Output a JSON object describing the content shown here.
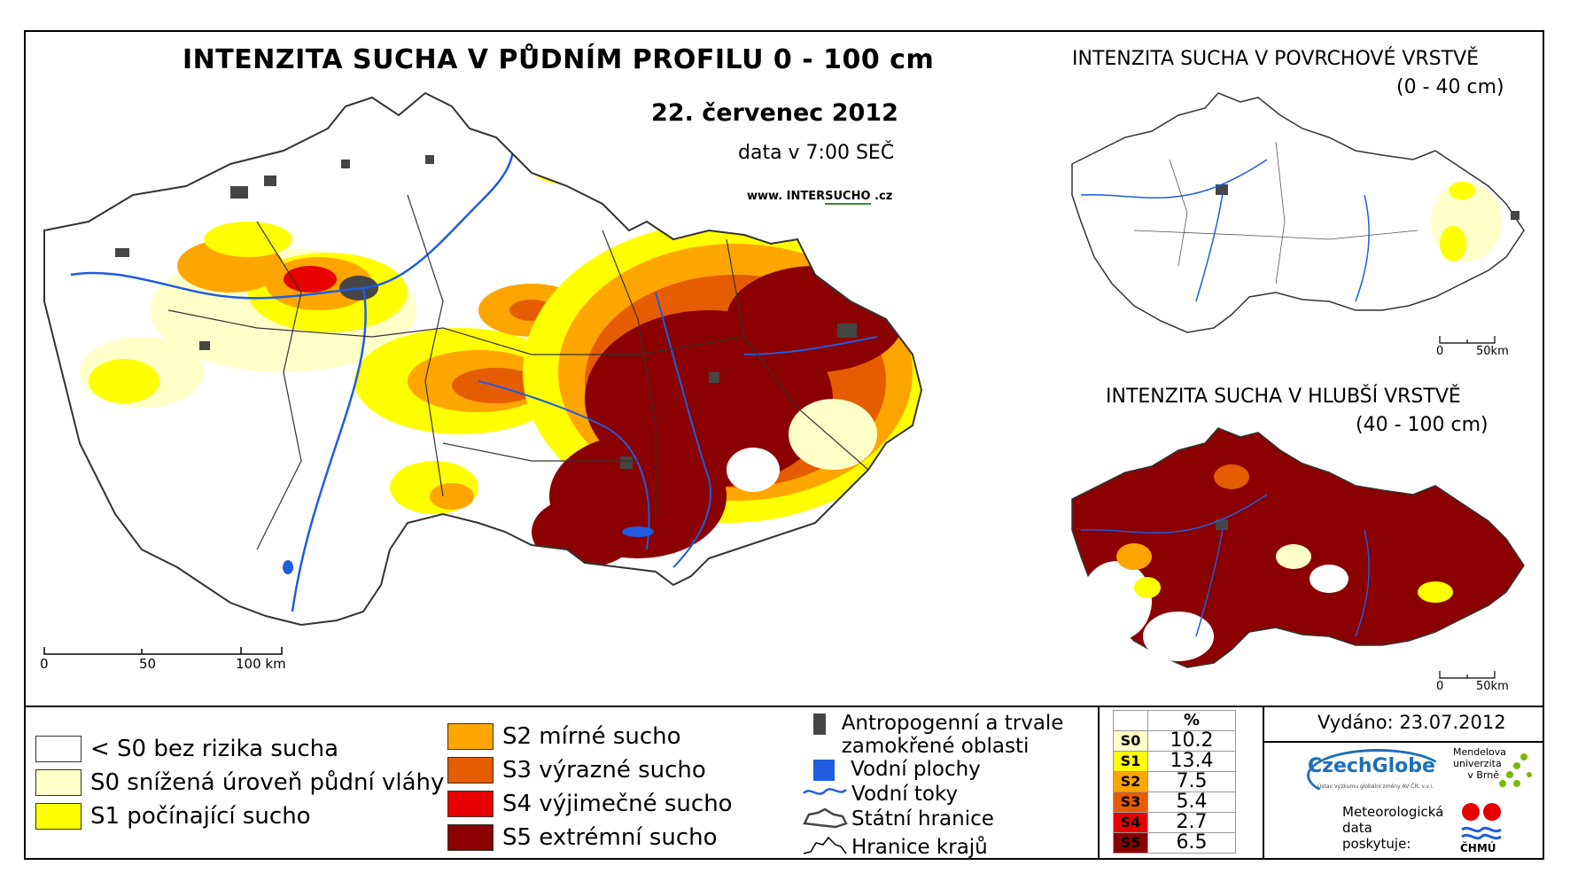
{
  "header": {
    "title": "INTENZITA SUCHA V PŮDNÍM PROFILU 0 - 100 cm",
    "date": "22. červenec 2012",
    "data_time": "data v 7:00 SEČ",
    "website_prefix": "www. INTER",
    "website_brand": "SUCHO",
    "website_suffix": " .cz"
  },
  "inset_top": {
    "title": "INTENZITA SUCHA V POVRCHOVÉ VRSTVĚ",
    "subtitle": "(0 - 40 cm)",
    "scale_0": "0",
    "scale_end": "50km"
  },
  "inset_bottom": {
    "title": "INTENZITA SUCHA V HLUBŠÍ VRSTVĚ",
    "subtitle": "(40 - 100 cm)",
    "scale_0": "0",
    "scale_end": "50km"
  },
  "main_scale": {
    "s0": "0",
    "s50": "50",
    "s100": "100 km"
  },
  "legend": {
    "items": [
      {
        "label": "< S0 bez rizika sucha",
        "color": "#ffffff"
      },
      {
        "label": "S0 snížená úroveň půdní vláhy",
        "color": "#ffffc8"
      },
      {
        "label": "S1 počínající sucho",
        "color": "#ffff00"
      },
      {
        "label": "S2 mírné sucho",
        "color": "#ffa500"
      },
      {
        "label": "S3 výrazné sucho",
        "color": "#e65c00"
      },
      {
        "label": "S4 výjimečné sucho",
        "color": "#e60000"
      },
      {
        "label": "S5 extrémní sucho",
        "color": "#8b0000"
      }
    ]
  },
  "symbols": {
    "anthropogenic": "Antropogenní a trvale zamokřené oblasti",
    "water_bodies": "Vodní plochy",
    "rivers": "Vodní toky",
    "state_border": "Státní hranice",
    "region_border": "Hranice krajů"
  },
  "stats": {
    "header": "%",
    "rows": [
      {
        "code": "S0",
        "value": "10.2",
        "color": "#ffffc8"
      },
      {
        "code": "S1",
        "value": "13.4",
        "color": "#ffff00"
      },
      {
        "code": "S2",
        "value": "7.5",
        "color": "#ffa500"
      },
      {
        "code": "S3",
        "value": "5.4",
        "color": "#e65c00"
      },
      {
        "code": "S4",
        "value": "2.7",
        "color": "#e60000"
      },
      {
        "code": "S5",
        "value": "6.5",
        "color": "#8b0000"
      }
    ]
  },
  "footer": {
    "issued": "Vydáno: 23.07.2012",
    "czechglobe": "CzechGlobe",
    "czechglobe_sub": "Ústav výzkumu globální změny AV ČR, v.v.i.",
    "mendel": "Mendelova univerzita v Brně",
    "meteo": "Meteorologická data poskytuje:",
    "chmu": "ČHMÚ"
  }
}
